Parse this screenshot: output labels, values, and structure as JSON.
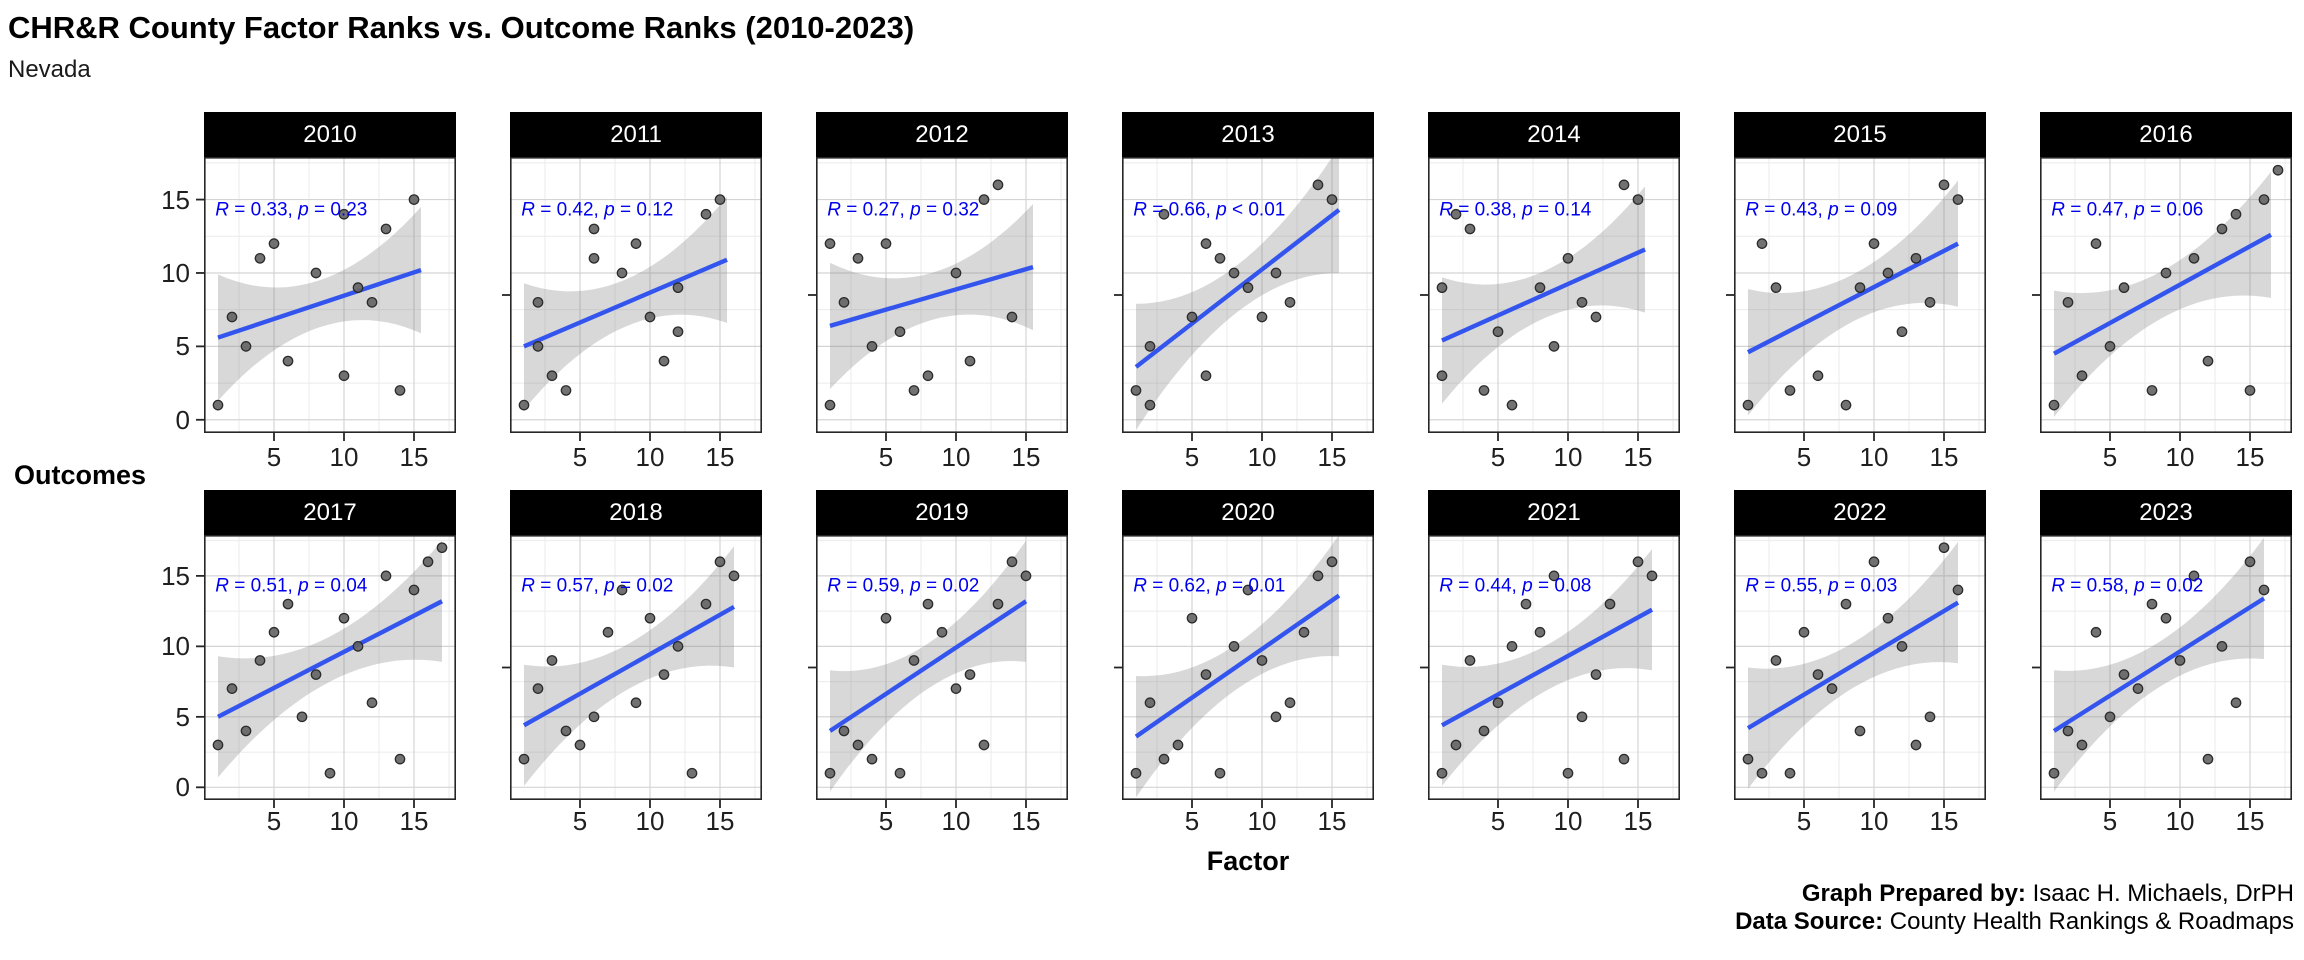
{
  "title": "CHR&R County Factor Ranks vs. Outcome Ranks (2010-2023)",
  "subtitle": "Nevada",
  "axis": {
    "y_label": "Outcomes",
    "x_label": "Factor",
    "x_ticks": [
      "5",
      "10",
      "15"
    ],
    "y_ticks": [
      "15",
      "10",
      "5",
      "0"
    ]
  },
  "footer": {
    "prepared_by_label": "Graph Prepared by:",
    "prepared_by": "Isaac H. Michaels, DrPH",
    "data_source_label": "Data Source:",
    "data_source": "County Health Rankings & Roadmaps"
  },
  "style": {
    "annotation_color": "#0000EE",
    "trend_color": "#3355EE",
    "band_color": "#8a8a8a",
    "point_fill": "#636363",
    "point_stroke": "#2b2b2b",
    "header_bg": "#000000",
    "header_text": "#ffffff",
    "major_grid": "#d4d4d4",
    "minor_grid": "#ebebeb",
    "panel_border": "#262626"
  },
  "chart_data": {
    "type": "scatter",
    "facet_variable": "year",
    "xlabel": "Factor",
    "ylabel": "Outcomes",
    "x_range": [
      0,
      18
    ],
    "y_range": [
      -0.9,
      17.9
    ],
    "x_major_gridlines": [
      5,
      10,
      15
    ],
    "y_major_gridlines": [
      0,
      5,
      10,
      15
    ],
    "x_minor_gridlines": [
      2.5,
      7.5,
      12.5,
      17.5
    ],
    "y_minor_gridlines": [
      2.5,
      7.5,
      12.5,
      17.5
    ],
    "legend": "none",
    "facets": [
      {
        "year": "2010",
        "annotation": "R = 0.33, p = 0.23",
        "r_value": "0.33",
        "p_operator": "=",
        "p_value": "0.23",
        "trend": {
          "x1": 1,
          "y1": 5.6,
          "x2": 15.5,
          "y2": 10.2
        },
        "points": [
          [
            1,
            1
          ],
          [
            2,
            7
          ],
          [
            3,
            5
          ],
          [
            4,
            11
          ],
          [
            5,
            12
          ],
          [
            6,
            4
          ],
          [
            8,
            10
          ],
          [
            10,
            3
          ],
          [
            10,
            14
          ],
          [
            11,
            9
          ],
          [
            12,
            8
          ],
          [
            13,
            13
          ],
          [
            14,
            2
          ],
          [
            15,
            15
          ]
        ]
      },
      {
        "year": "2011",
        "annotation": "R = 0.42, p = 0.12",
        "r_value": "0.42",
        "p_operator": "=",
        "p_value": "0.12",
        "trend": {
          "x1": 1,
          "y1": 5.0,
          "x2": 15.5,
          "y2": 10.9
        },
        "points": [
          [
            1,
            1
          ],
          [
            2,
            5
          ],
          [
            2,
            8
          ],
          [
            3,
            3
          ],
          [
            4,
            2
          ],
          [
            6,
            11
          ],
          [
            6,
            13
          ],
          [
            8,
            10
          ],
          [
            9,
            12
          ],
          [
            10,
            7
          ],
          [
            11,
            4
          ],
          [
            12,
            6
          ],
          [
            12,
            9
          ],
          [
            14,
            14
          ],
          [
            15,
            15
          ]
        ]
      },
      {
        "year": "2012",
        "annotation": "R = 0.27, p = 0.32",
        "r_value": "0.27",
        "p_operator": "=",
        "p_value": "0.32",
        "trend": {
          "x1": 1,
          "y1": 6.4,
          "x2": 15.5,
          "y2": 10.4
        },
        "points": [
          [
            1,
            1
          ],
          [
            1,
            12
          ],
          [
            2,
            8
          ],
          [
            3,
            11
          ],
          [
            4,
            5
          ],
          [
            5,
            12
          ],
          [
            6,
            6
          ],
          [
            7,
            2
          ],
          [
            8,
            3
          ],
          [
            10,
            10
          ],
          [
            11,
            4
          ],
          [
            12,
            15
          ],
          [
            13,
            16
          ],
          [
            14,
            7
          ]
        ]
      },
      {
        "year": "2013",
        "annotation": "R = 0.66, p < 0.01",
        "r_value": "0.66",
        "p_operator": "<",
        "p_value": "0.01",
        "trend": {
          "x1": 1,
          "y1": 3.6,
          "x2": 15.5,
          "y2": 14.3
        },
        "points": [
          [
            1,
            2
          ],
          [
            2,
            1
          ],
          [
            2,
            5
          ],
          [
            3,
            14
          ],
          [
            5,
            7
          ],
          [
            6,
            3
          ],
          [
            6,
            12
          ],
          [
            7,
            11
          ],
          [
            8,
            10
          ],
          [
            9,
            9
          ],
          [
            10,
            7
          ],
          [
            11,
            10
          ],
          [
            12,
            8
          ],
          [
            14,
            16
          ],
          [
            15,
            15
          ]
        ]
      },
      {
        "year": "2014",
        "annotation": "R = 0.38, p = 0.14",
        "r_value": "0.38",
        "p_operator": "=",
        "p_value": "0.14",
        "trend": {
          "x1": 1,
          "y1": 5.4,
          "x2": 15.5,
          "y2": 11.6
        },
        "points": [
          [
            1,
            3
          ],
          [
            1,
            9
          ],
          [
            2,
            14
          ],
          [
            3,
            13
          ],
          [
            4,
            2
          ],
          [
            5,
            6
          ],
          [
            6,
            1
          ],
          [
            8,
            9
          ],
          [
            9,
            5
          ],
          [
            10,
            11
          ],
          [
            11,
            8
          ],
          [
            12,
            7
          ],
          [
            14,
            16
          ],
          [
            15,
            15
          ]
        ]
      },
      {
        "year": "2015",
        "annotation": "R = 0.43, p = 0.09",
        "r_value": "0.43",
        "p_operator": "=",
        "p_value": "0.09",
        "trend": {
          "x1": 1,
          "y1": 4.6,
          "x2": 16,
          "y2": 12.0
        },
        "points": [
          [
            1,
            1
          ],
          [
            2,
            12
          ],
          [
            3,
            9
          ],
          [
            4,
            2
          ],
          [
            6,
            3
          ],
          [
            8,
            1
          ],
          [
            9,
            9
          ],
          [
            10,
            12
          ],
          [
            11,
            10
          ],
          [
            12,
            6
          ],
          [
            13,
            11
          ],
          [
            14,
            8
          ],
          [
            15,
            16
          ],
          [
            16,
            15
          ]
        ]
      },
      {
        "year": "2016",
        "annotation": "R = 0.47, p = 0.06",
        "r_value": "0.47",
        "p_operator": "=",
        "p_value": "0.06",
        "trend": {
          "x1": 1,
          "y1": 4.5,
          "x2": 16.5,
          "y2": 12.6
        },
        "points": [
          [
            1,
            1
          ],
          [
            2,
            8
          ],
          [
            3,
            3
          ],
          [
            4,
            12
          ],
          [
            5,
            5
          ],
          [
            6,
            9
          ],
          [
            8,
            2
          ],
          [
            9,
            10
          ],
          [
            11,
            11
          ],
          [
            12,
            4
          ],
          [
            13,
            13
          ],
          [
            14,
            14
          ],
          [
            15,
            2
          ],
          [
            16,
            15
          ],
          [
            17,
            17
          ]
        ]
      },
      {
        "year": "2017",
        "annotation": "R = 0.51, p = 0.04",
        "r_value": "0.51",
        "p_operator": "=",
        "p_value": "0.04",
        "trend": {
          "x1": 1,
          "y1": 5.0,
          "x2": 17,
          "y2": 13.2
        },
        "points": [
          [
            1,
            3
          ],
          [
            2,
            7
          ],
          [
            3,
            4
          ],
          [
            4,
            9
          ],
          [
            5,
            11
          ],
          [
            6,
            13
          ],
          [
            7,
            5
          ],
          [
            8,
            8
          ],
          [
            9,
            1
          ],
          [
            10,
            12
          ],
          [
            11,
            10
          ],
          [
            12,
            6
          ],
          [
            13,
            15
          ],
          [
            14,
            2
          ],
          [
            15,
            14
          ],
          [
            16,
            16
          ],
          [
            17,
            17
          ]
        ]
      },
      {
        "year": "2018",
        "annotation": "R = 0.57, p = 0.02",
        "r_value": "0.57",
        "p_operator": "=",
        "p_value": "0.02",
        "trend": {
          "x1": 1,
          "y1": 4.4,
          "x2": 16,
          "y2": 12.8
        },
        "points": [
          [
            1,
            2
          ],
          [
            2,
            7
          ],
          [
            3,
            9
          ],
          [
            4,
            4
          ],
          [
            5,
            3
          ],
          [
            6,
            5
          ],
          [
            7,
            11
          ],
          [
            8,
            14
          ],
          [
            9,
            6
          ],
          [
            10,
            12
          ],
          [
            11,
            8
          ],
          [
            12,
            10
          ],
          [
            13,
            1
          ],
          [
            14,
            13
          ],
          [
            15,
            16
          ],
          [
            16,
            15
          ]
        ]
      },
      {
        "year": "2019",
        "annotation": "R = 0.59, p = 0.02",
        "r_value": "0.59",
        "p_operator": "=",
        "p_value": "0.02",
        "trend": {
          "x1": 1,
          "y1": 4.0,
          "x2": 15,
          "y2": 13.2
        },
        "points": [
          [
            1,
            1
          ],
          [
            2,
            4
          ],
          [
            3,
            3
          ],
          [
            4,
            2
          ],
          [
            5,
            12
          ],
          [
            6,
            1
          ],
          [
            7,
            9
          ],
          [
            8,
            13
          ],
          [
            9,
            11
          ],
          [
            10,
            7
          ],
          [
            11,
            8
          ],
          [
            12,
            3
          ],
          [
            13,
            13
          ],
          [
            14,
            16
          ],
          [
            15,
            15
          ]
        ]
      },
      {
        "year": "2020",
        "annotation": "R = 0.62, p = 0.01",
        "r_value": "0.62",
        "p_operator": "=",
        "p_value": "0.01",
        "trend": {
          "x1": 1,
          "y1": 3.6,
          "x2": 15.5,
          "y2": 13.6
        },
        "points": [
          [
            1,
            1
          ],
          [
            2,
            6
          ],
          [
            3,
            2
          ],
          [
            4,
            3
          ],
          [
            5,
            12
          ],
          [
            6,
            8
          ],
          [
            7,
            1
          ],
          [
            8,
            10
          ],
          [
            9,
            14
          ],
          [
            10,
            9
          ],
          [
            11,
            5
          ],
          [
            12,
            6
          ],
          [
            13,
            11
          ],
          [
            14,
            15
          ],
          [
            15,
            16
          ]
        ]
      },
      {
        "year": "2021",
        "annotation": "R = 0.44, p = 0.08",
        "r_value": "0.44",
        "p_operator": "=",
        "p_value": "0.08",
        "trend": {
          "x1": 1,
          "y1": 4.4,
          "x2": 16,
          "y2": 12.6
        },
        "points": [
          [
            1,
            1
          ],
          [
            2,
            3
          ],
          [
            3,
            9
          ],
          [
            4,
            4
          ],
          [
            5,
            6
          ],
          [
            6,
            10
          ],
          [
            7,
            13
          ],
          [
            8,
            11
          ],
          [
            9,
            15
          ],
          [
            10,
            1
          ],
          [
            11,
            5
          ],
          [
            12,
            8
          ],
          [
            13,
            13
          ],
          [
            14,
            2
          ],
          [
            15,
            16
          ],
          [
            16,
            15
          ]
        ]
      },
      {
        "year": "2022",
        "annotation": "R = 0.55, p = 0.03",
        "r_value": "0.55",
        "p_operator": "=",
        "p_value": "0.03",
        "trend": {
          "x1": 1,
          "y1": 4.2,
          "x2": 16,
          "y2": 13.1
        },
        "points": [
          [
            1,
            2
          ],
          [
            2,
            1
          ],
          [
            3,
            9
          ],
          [
            4,
            1
          ],
          [
            5,
            11
          ],
          [
            6,
            8
          ],
          [
            7,
            7
          ],
          [
            8,
            13
          ],
          [
            9,
            4
          ],
          [
            10,
            16
          ],
          [
            11,
            12
          ],
          [
            12,
            10
          ],
          [
            13,
            3
          ],
          [
            14,
            5
          ],
          [
            15,
            17
          ],
          [
            16,
            14
          ]
        ]
      },
      {
        "year": "2023",
        "annotation": "R = 0.58, p = 0.02",
        "r_value": "0.58",
        "p_operator": "=",
        "p_value": "0.02",
        "trend": {
          "x1": 1,
          "y1": 4.0,
          "x2": 16,
          "y2": 13.4
        },
        "points": [
          [
            1,
            1
          ],
          [
            2,
            4
          ],
          [
            3,
            3
          ],
          [
            4,
            11
          ],
          [
            5,
            5
          ],
          [
            6,
            8
          ],
          [
            7,
            7
          ],
          [
            8,
            13
          ],
          [
            9,
            12
          ],
          [
            10,
            9
          ],
          [
            11,
            15
          ],
          [
            12,
            2
          ],
          [
            13,
            10
          ],
          [
            14,
            6
          ],
          [
            15,
            16
          ],
          [
            16,
            14
          ]
        ]
      }
    ]
  }
}
